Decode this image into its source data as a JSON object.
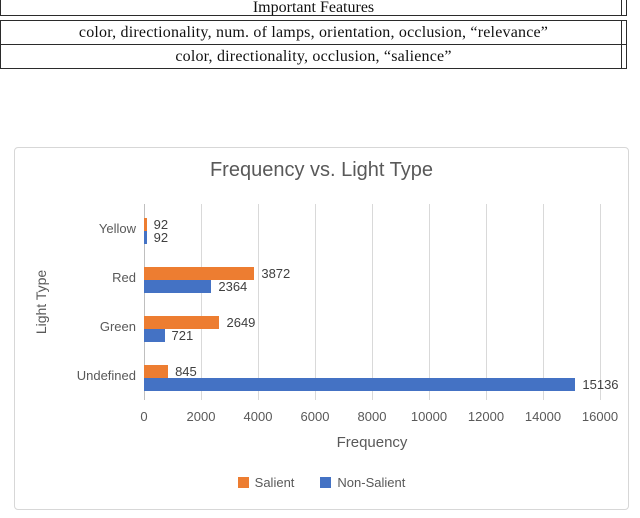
{
  "table": {
    "header": "Important Features",
    "rows": [
      "color, directionality, num. of lamps, orientation, occlusion, “relevance”",
      "color, directionality, occlusion, “salience”"
    ]
  },
  "chart_data": {
    "type": "bar",
    "orientation": "horizontal",
    "title": "Frequency vs. Light Type",
    "xlabel": "Frequency",
    "ylabel": "Light Type",
    "categories": [
      "Yellow",
      "Red",
      "Green",
      "Undefined"
    ],
    "series": [
      {
        "name": "Salient",
        "color": "#ED7D31",
        "values": [
          92,
          3872,
          2649,
          845
        ]
      },
      {
        "name": "Non-Salient",
        "color": "#4472C4",
        "values": [
          92,
          2364,
          721,
          15136
        ]
      }
    ],
    "xlim": [
      0,
      16000
    ],
    "xticks": [
      0,
      2000,
      4000,
      6000,
      8000,
      10000,
      12000,
      14000,
      16000
    ],
    "grid": true,
    "legend_position": "bottom"
  },
  "colors": {
    "salient_orange": "#ED7D31",
    "non_salient_blue": "#4472C4",
    "axis_text": "#595959",
    "value_text": "#404040",
    "gridline": "#D9D9D9",
    "card_border": "#D7D7D7",
    "table_border": "#2B2B2B"
  }
}
